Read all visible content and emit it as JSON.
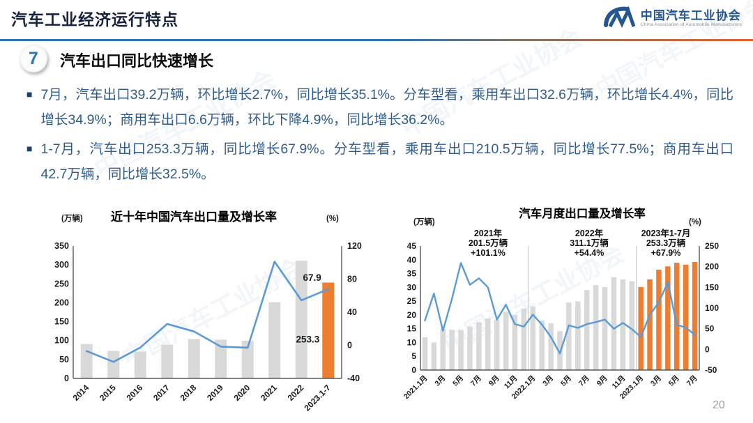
{
  "header": {
    "title": "汽车工业经济运行特点",
    "logo": {
      "org_cn": "中国汽车工业协会",
      "org_en": "China Association of Automobile Manufacturers"
    }
  },
  "section": {
    "number": "7",
    "title": "汽车出口同比快速增长"
  },
  "bullets": [
    "7月，汽车出口39.2万辆，环比增长2.7%，同比增长35.1%。分车型看，乘用车出口32.6万辆，环比增长4.4%，同比增长34.9%；商用车出口6.6万辆，环比下降4.9%，同比增长36.2%。",
    "1-7月，汽车出口253.3万辆，同比增长67.9%。分车型看，乘用车出口210.5万辆，同比增长77.5%；商用车出口42.7万辆，同比增长32.5%。"
  ],
  "page_number": "20",
  "watermark_text": "中国汽车工业协会",
  "colors": {
    "bar_gray": "#D9D9D9",
    "bar_orange": "#ED7D31",
    "line_blue": "#5B9BD5",
    "axis": "#595959",
    "tick_text": "#1a1a1a"
  },
  "chart_data": [
    {
      "type": "bar",
      "subtype": "bar+line combo",
      "title": "近十年中国汽车出口量及增长率",
      "unit_left": "(万辆)",
      "unit_right": "(%)",
      "categories": [
        "2014",
        "2015",
        "2016",
        "2017",
        "2018",
        "2019",
        "2020",
        "2021",
        "2022",
        "2023.1-7"
      ],
      "bar_series": {
        "name": "出口量(万辆)",
        "values": [
          91.0,
          72.8,
          70.8,
          89.1,
          104.1,
          102.4,
          99.5,
          201.5,
          311.1,
          253.3
        ],
        "highlight_from": 9
      },
      "line_series": {
        "name": "同比增长率(%)",
        "values": [
          -7,
          -20,
          -2.7,
          25.8,
          16.8,
          -1.6,
          -2.9,
          101.1,
          54.4,
          67.9
        ]
      },
      "left_axis": {
        "min": 0,
        "max": 350,
        "step": 50
      },
      "right_axis": {
        "min": -40,
        "max": 120,
        "step": 40
      },
      "line_end_label": "67.9",
      "bar_label": "253.3",
      "grid": "off",
      "legend": "none"
    },
    {
      "type": "bar",
      "subtype": "bar+line combo",
      "title": "汽车月度出口量及增长率",
      "unit_left": "(万辆)",
      "unit_right": "(%)",
      "categories": [
        "2021.1月",
        "2月",
        "3月",
        "4月",
        "5月",
        "6月",
        "7月",
        "8月",
        "9月",
        "10月",
        "11月",
        "12月",
        "2022.1月",
        "2月",
        "3月",
        "4月",
        "5月",
        "6月",
        "7月",
        "8月",
        "9月",
        "10月",
        "11月",
        "12月",
        "2023.1月",
        "2月",
        "3月",
        "4月",
        "5月",
        "6月",
        "7月"
      ],
      "tick_label_every": 2,
      "bar_series": {
        "name": "月度出口量(万辆)",
        "values": [
          11.9,
          10.0,
          14.9,
          14.6,
          14.5,
          15.8,
          17.4,
          18.7,
          18.3,
          21.0,
          20.0,
          22.3,
          23.1,
          18.0,
          17.0,
          14.1,
          24.5,
          24.9,
          29.0,
          30.8,
          30.1,
          33.7,
          32.9,
          32.2,
          30.1,
          32.9,
          36.4,
          37.6,
          38.9,
          38.2,
          39.2
        ],
        "highlight_from": 24
      },
      "line_series": {
        "name": "同比增长率(%)",
        "values": [
          70,
          135,
          45,
          122,
          209,
          156,
          172,
          150,
          72,
          108,
          61,
          55,
          84,
          60,
          30,
          -10,
          58,
          52,
          61,
          66,
          72,
          50,
          64,
          49,
          30,
          83,
          114,
          162,
          59,
          53,
          35
        ]
      },
      "left_axis": {
        "min": 0,
        "max": 45,
        "step": 5
      },
      "right_axis": {
        "min": -50,
        "max": 250,
        "step": 50
      },
      "separators_after": [
        11,
        23
      ],
      "group_annotations": [
        {
          "lines": [
            "2021年",
            "201.5万辆",
            "+101.1%"
          ]
        },
        {
          "lines": [
            "2022年",
            "311.1万辆",
            "+54.4%"
          ]
        },
        {
          "lines": [
            "2023年1-7月",
            "253.3万辆",
            "+67.9%"
          ]
        }
      ],
      "grid": "off",
      "legend": "none"
    }
  ]
}
